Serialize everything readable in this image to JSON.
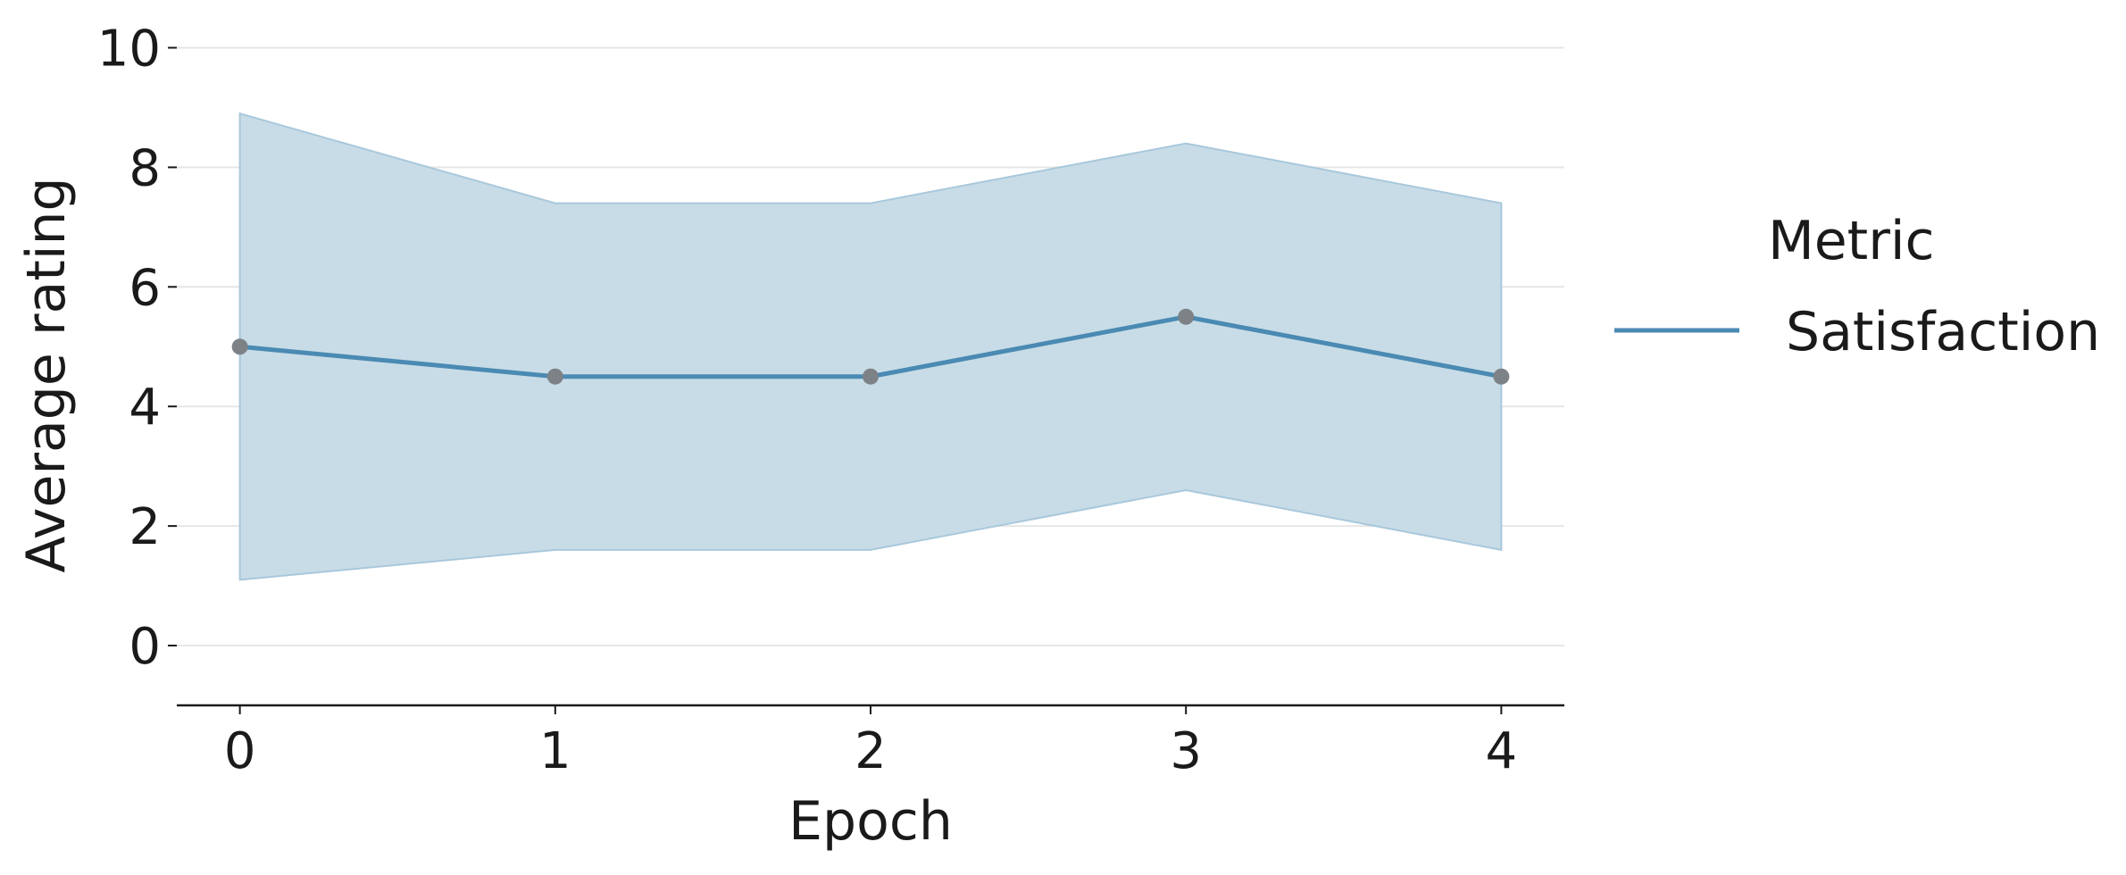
{
  "chart_data": {
    "type": "line",
    "x": [
      0,
      1,
      2,
      3,
      4
    ],
    "series": [
      {
        "name": "Satisfaction",
        "values": [
          5.0,
          4.5,
          4.5,
          5.5,
          4.5
        ],
        "band_lower": [
          1.1,
          1.6,
          1.6,
          2.6,
          1.6
        ],
        "band_upper": [
          8.9,
          7.4,
          7.4,
          8.4,
          7.4
        ],
        "color": "#4a8ab3",
        "band_color": "#c8dce7",
        "marker_color": "#7d8287"
      }
    ],
    "xlabel": "Epoch",
    "ylabel": "Average rating",
    "xlim": [
      -0.2,
      4.2
    ],
    "ylim": [
      -1,
      10.5
    ],
    "xticks": [
      "0",
      "1",
      "2",
      "3",
      "4"
    ],
    "yticks": [
      "0",
      "2",
      "4",
      "6",
      "8",
      "10"
    ],
    "grid": "horizontal",
    "legend": {
      "title": "Metric",
      "placement": "right"
    }
  }
}
